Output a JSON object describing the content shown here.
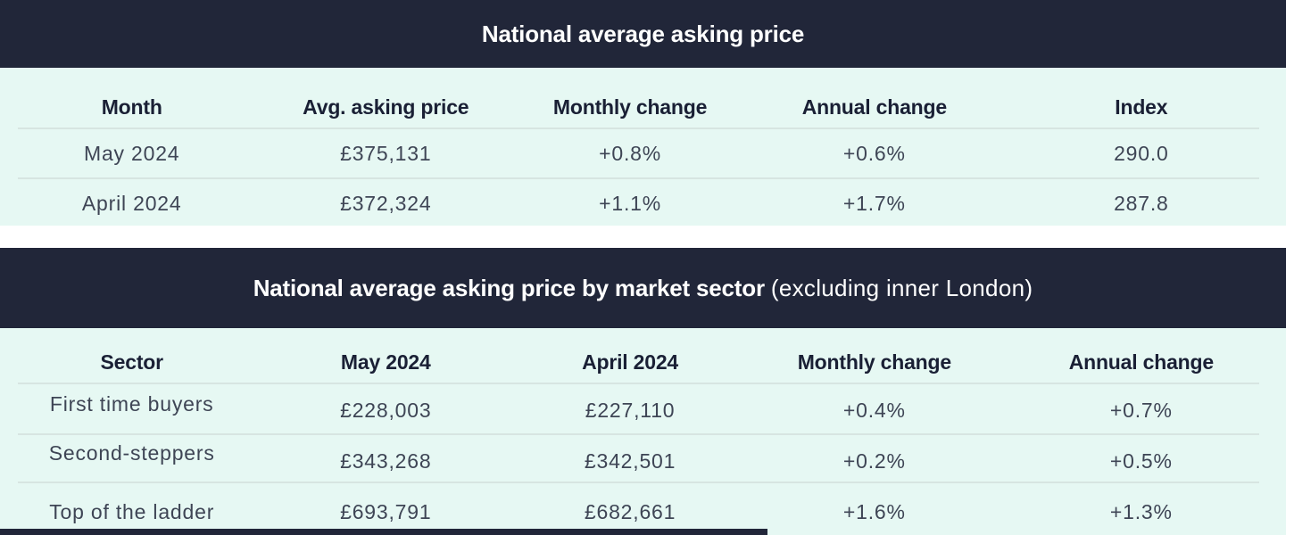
{
  "theme": {
    "banner_bg": "#212639",
    "section_bg": "#e6f8f3",
    "header_text": "#1a2035",
    "data_text": "#3e4555",
    "divider": "#d7e5e1"
  },
  "table1": {
    "title": "National average asking price",
    "columns": [
      "Month",
      "Avg. asking price",
      "Monthly change",
      "Annual change",
      "Index"
    ],
    "rows": [
      [
        "May 2024",
        "£375,131",
        "+0.8%",
        "+0.6%",
        "290.0"
      ],
      [
        "April 2024",
        "£372,324",
        "+1.1%",
        "+1.7%",
        "287.8"
      ]
    ]
  },
  "table2": {
    "title_bold": "National average asking price by market sector",
    "title_light": "(excluding inner London)",
    "columns": [
      "Sector",
      "May 2024",
      "April 2024",
      "Monthly change",
      "Annual change"
    ],
    "rows": [
      [
        "First time buyers",
        "£228,003",
        "£227,110",
        "+0.4%",
        "+0.7%"
      ],
      [
        "Second-steppers",
        "£343,268",
        "£342,501",
        "+0.2%",
        "+0.5%"
      ],
      [
        "Top of the ladder",
        "£693,791",
        "£682,661",
        "+1.6%",
        "+1.3%"
      ]
    ]
  }
}
